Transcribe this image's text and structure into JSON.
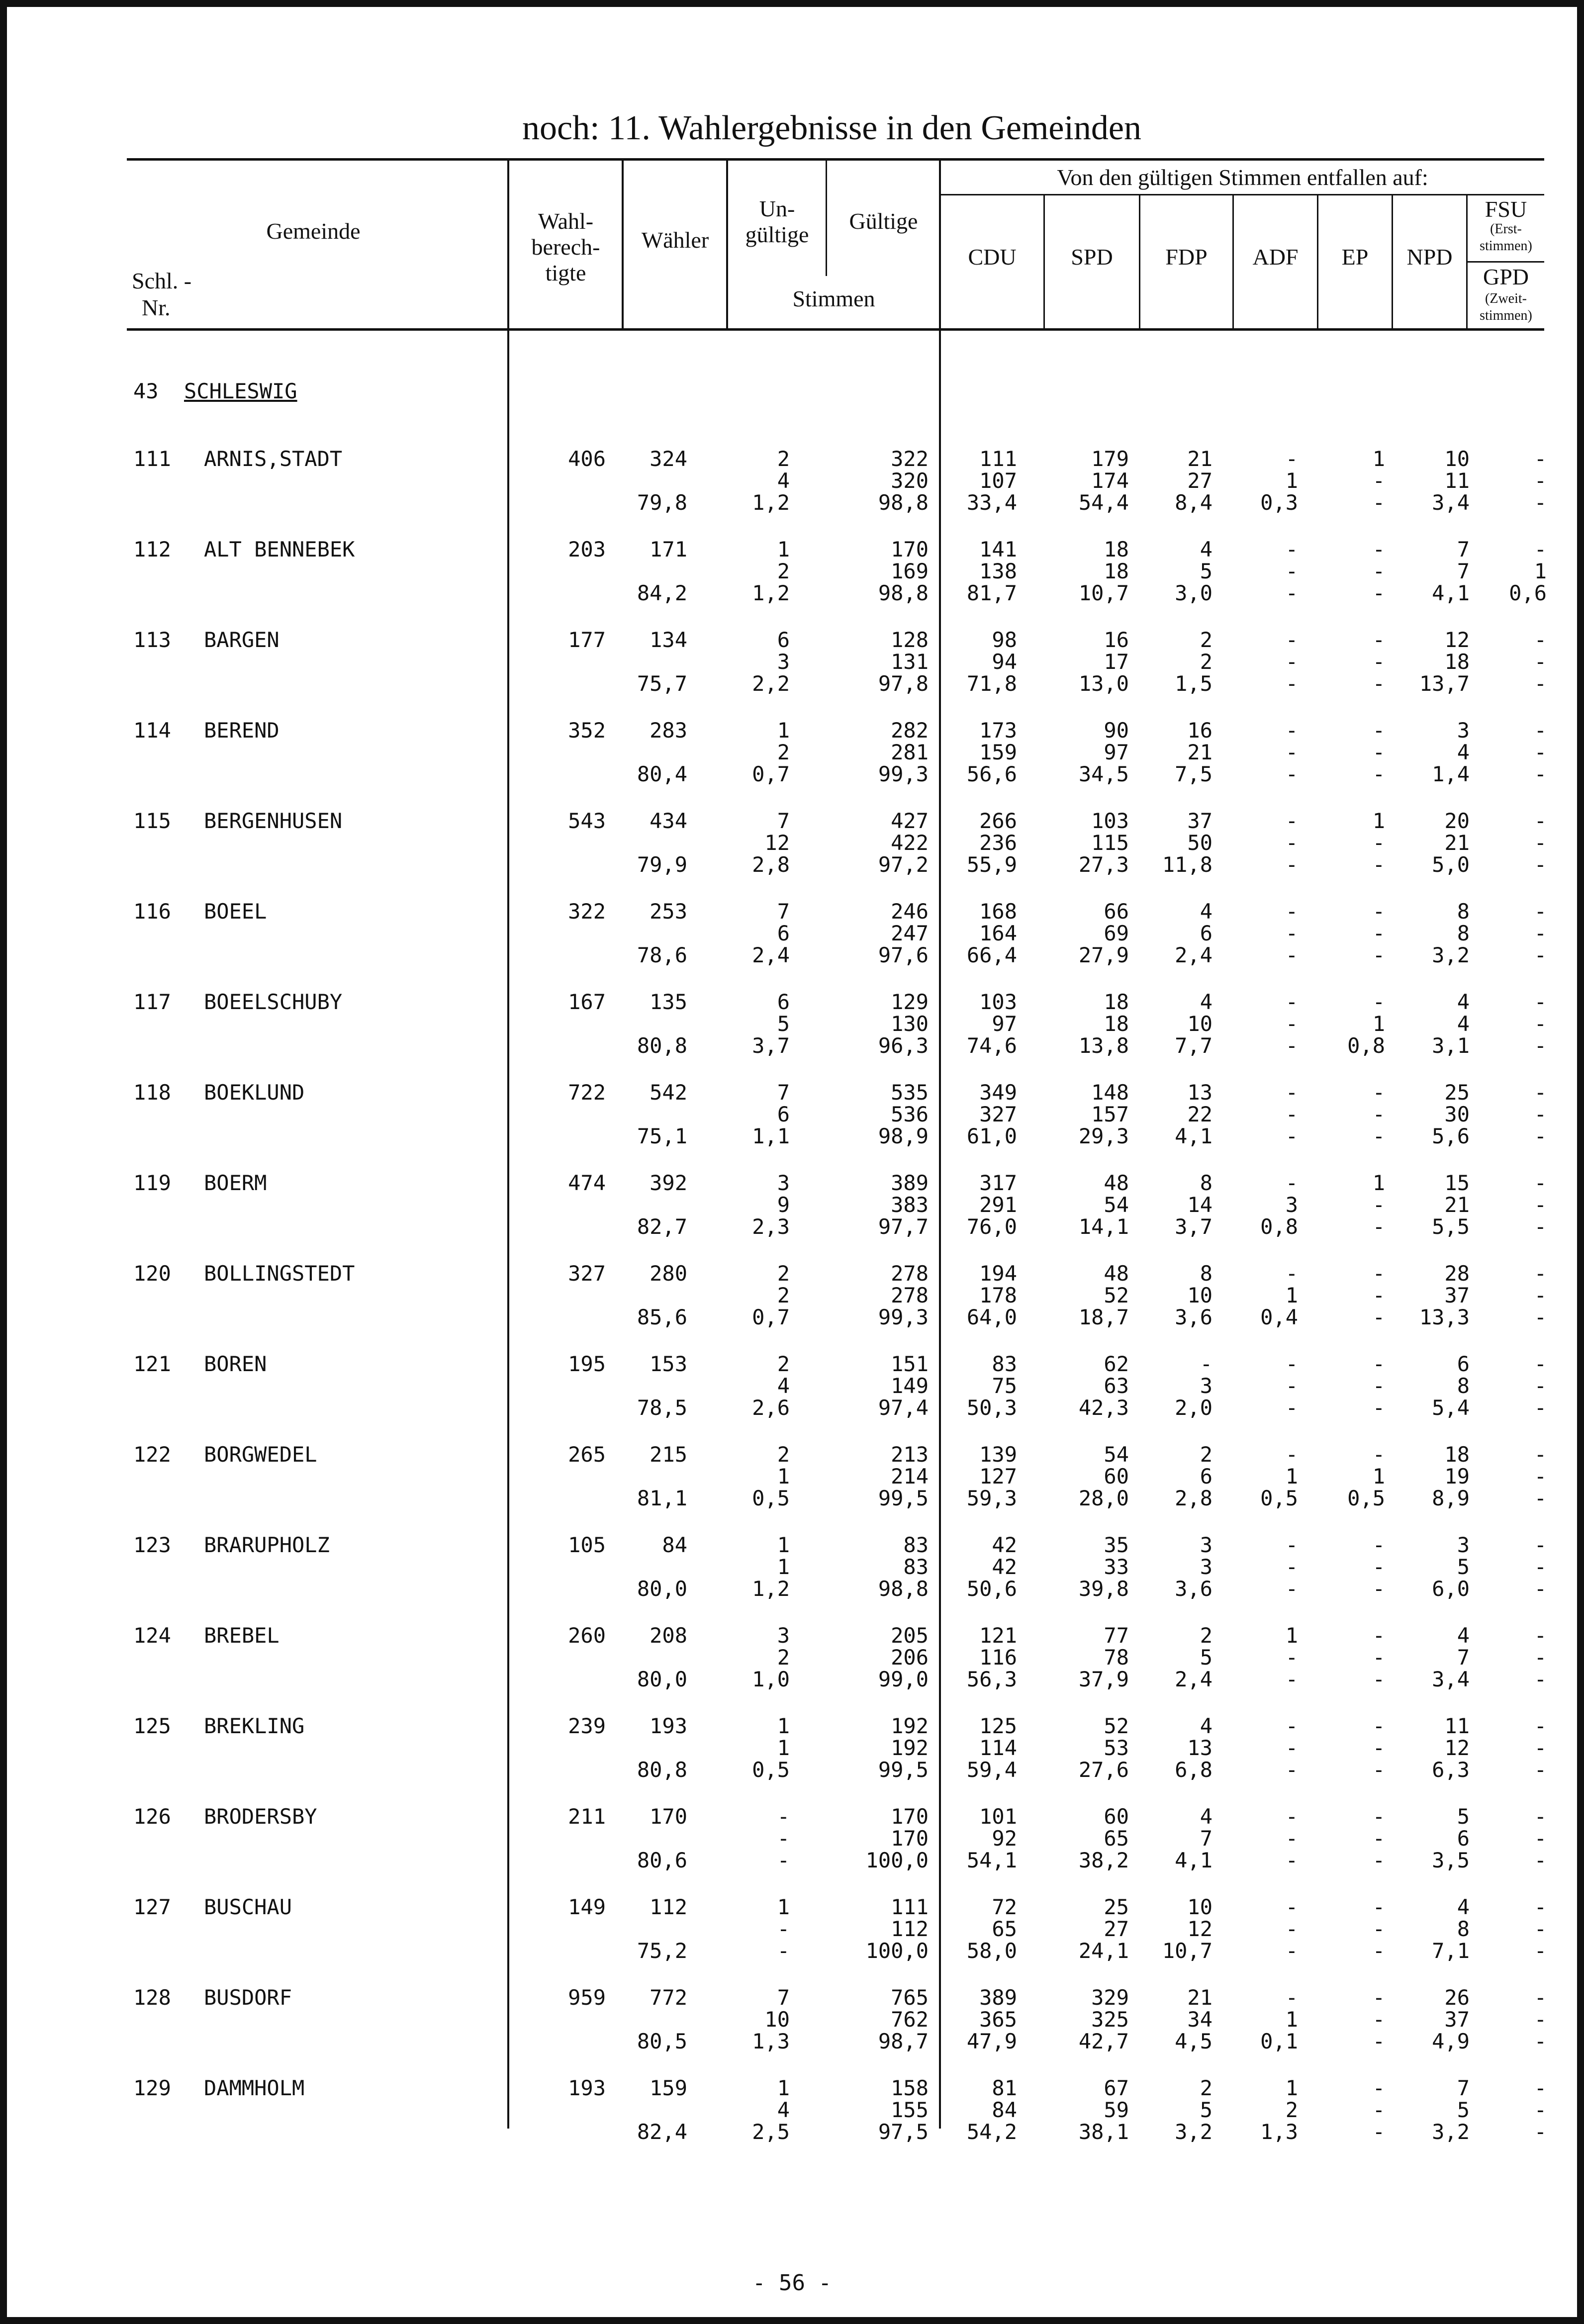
{
  "title": "noch: 11. Wahlergebnisse in den Gemeinden",
  "headers": {
    "gemeinde": "Gemeinde",
    "schl": "Schl. -",
    "nr": "Nr.",
    "wahl1": "Wahl-",
    "wahl2": "berech-",
    "wahl3": "tigte",
    "waehler": "Wähler",
    "un1": "Un-",
    "un2": "gültige",
    "gueltige": "Gültige",
    "stimmen": "Stimmen",
    "von": "Von den gültigen Stimmen entfallen auf:",
    "cdu": "CDU",
    "spd": "SPD",
    "fdp": "FDP",
    "adf": "ADF",
    "ep": "EP",
    "npd": "NPD",
    "fsu": "FSU",
    "erst1": "(Erst-",
    "erst2": "stimmen)",
    "gpd": "GPD",
    "zweit1": "(Zweit-",
    "zweit2": "stimmen)"
  },
  "district": {
    "number": "43",
    "name": "SCHLESWIG"
  },
  "rows": [
    {
      "nr": "111",
      "name": "ARNIS,STADT",
      "wahl": "406",
      "lines": [
        [
          "324",
          "2",
          "322",
          "111",
          "179",
          "21",
          "-",
          "1",
          "10",
          "-"
        ],
        [
          "",
          "4",
          "320",
          "107",
          "174",
          "27",
          "1",
          "-",
          "11",
          "-"
        ],
        [
          "79,8",
          "1,2",
          "98,8",
          "33,4",
          "54,4",
          "8,4",
          "0,3",
          "-",
          "3,4",
          "-"
        ]
      ]
    },
    {
      "nr": "112",
      "name": "ALT BENNEBEK",
      "wahl": "203",
      "lines": [
        [
          "171",
          "1",
          "170",
          "141",
          "18",
          "4",
          "-",
          "-",
          "7",
          "-"
        ],
        [
          "",
          "2",
          "169",
          "138",
          "18",
          "5",
          "-",
          "-",
          "7",
          "1"
        ],
        [
          "84,2",
          "1,2",
          "98,8",
          "81,7",
          "10,7",
          "3,0",
          "-",
          "-",
          "4,1",
          "0,6"
        ]
      ]
    },
    {
      "nr": "113",
      "name": "BARGEN",
      "wahl": "177",
      "lines": [
        [
          "134",
          "6",
          "128",
          "98",
          "16",
          "2",
          "-",
          "-",
          "12",
          "-"
        ],
        [
          "",
          "3",
          "131",
          "94",
          "17",
          "2",
          "-",
          "-",
          "18",
          "-"
        ],
        [
          "75,7",
          "2,2",
          "97,8",
          "71,8",
          "13,0",
          "1,5",
          "-",
          "-",
          "13,7",
          "-"
        ]
      ]
    },
    {
      "nr": "114",
      "name": "BEREND",
      "wahl": "352",
      "lines": [
        [
          "283",
          "1",
          "282",
          "173",
          "90",
          "16",
          "-",
          "-",
          "3",
          "-"
        ],
        [
          "",
          "2",
          "281",
          "159",
          "97",
          "21",
          "-",
          "-",
          "4",
          "-"
        ],
        [
          "80,4",
          "0,7",
          "99,3",
          "56,6",
          "34,5",
          "7,5",
          "-",
          "-",
          "1,4",
          "-"
        ]
      ]
    },
    {
      "nr": "115",
      "name": "BERGENHUSEN",
      "wahl": "543",
      "lines": [
        [
          "434",
          "7",
          "427",
          "266",
          "103",
          "37",
          "-",
          "1",
          "20",
          "-"
        ],
        [
          "",
          "12",
          "422",
          "236",
          "115",
          "50",
          "-",
          "-",
          "21",
          "-"
        ],
        [
          "79,9",
          "2,8",
          "97,2",
          "55,9",
          "27,3",
          "11,8",
          "-",
          "-",
          "5,0",
          "-"
        ]
      ]
    },
    {
      "nr": "116",
      "name": "BOEEL",
      "wahl": "322",
      "lines": [
        [
          "253",
          "7",
          "246",
          "168",
          "66",
          "4",
          "-",
          "-",
          "8",
          "-"
        ],
        [
          "",
          "6",
          "247",
          "164",
          "69",
          "6",
          "-",
          "-",
          "8",
          "-"
        ],
        [
          "78,6",
          "2,4",
          "97,6",
          "66,4",
          "27,9",
          "2,4",
          "-",
          "-",
          "3,2",
          "-"
        ]
      ]
    },
    {
      "nr": "117",
      "name": "BOEELSCHUBY",
      "wahl": "167",
      "lines": [
        [
          "135",
          "6",
          "129",
          "103",
          "18",
          "4",
          "-",
          "-",
          "4",
          "-"
        ],
        [
          "",
          "5",
          "130",
          "97",
          "18",
          "10",
          "-",
          "1",
          "4",
          "-"
        ],
        [
          "80,8",
          "3,7",
          "96,3",
          "74,6",
          "13,8",
          "7,7",
          "-",
          "0,8",
          "3,1",
          "-"
        ]
      ]
    },
    {
      "nr": "118",
      "name": "BOEKLUND",
      "wahl": "722",
      "lines": [
        [
          "542",
          "7",
          "535",
          "349",
          "148",
          "13",
          "-",
          "-",
          "25",
          "-"
        ],
        [
          "",
          "6",
          "536",
          "327",
          "157",
          "22",
          "-",
          "-",
          "30",
          "-"
        ],
        [
          "75,1",
          "1,1",
          "98,9",
          "61,0",
          "29,3",
          "4,1",
          "-",
          "-",
          "5,6",
          "-"
        ]
      ]
    },
    {
      "nr": "119",
      "name": "BOERM",
      "wahl": "474",
      "lines": [
        [
          "392",
          "3",
          "389",
          "317",
          "48",
          "8",
          "-",
          "1",
          "15",
          "-"
        ],
        [
          "",
          "9",
          "383",
          "291",
          "54",
          "14",
          "3",
          "-",
          "21",
          "-"
        ],
        [
          "82,7",
          "2,3",
          "97,7",
          "76,0",
          "14,1",
          "3,7",
          "0,8",
          "-",
          "5,5",
          "-"
        ]
      ]
    },
    {
      "nr": "120",
      "name": "BOLLINGSTEDT",
      "wahl": "327",
      "lines": [
        [
          "280",
          "2",
          "278",
          "194",
          "48",
          "8",
          "-",
          "-",
          "28",
          "-"
        ],
        [
          "",
          "2",
          "278",
          "178",
          "52",
          "10",
          "1",
          "-",
          "37",
          "-"
        ],
        [
          "85,6",
          "0,7",
          "99,3",
          "64,0",
          "18,7",
          "3,6",
          "0,4",
          "-",
          "13,3",
          "-"
        ]
      ]
    },
    {
      "nr": "121",
      "name": "BOREN",
      "wahl": "195",
      "lines": [
        [
          "153",
          "2",
          "151",
          "83",
          "62",
          "-",
          "-",
          "-",
          "6",
          "-"
        ],
        [
          "",
          "4",
          "149",
          "75",
          "63",
          "3",
          "-",
          "-",
          "8",
          "-"
        ],
        [
          "78,5",
          "2,6",
          "97,4",
          "50,3",
          "42,3",
          "2,0",
          "-",
          "-",
          "5,4",
          "-"
        ]
      ]
    },
    {
      "nr": "122",
      "name": "BORGWEDEL",
      "wahl": "265",
      "lines": [
        [
          "215",
          "2",
          "213",
          "139",
          "54",
          "2",
          "-",
          "-",
          "18",
          "-"
        ],
        [
          "",
          "1",
          "214",
          "127",
          "60",
          "6",
          "1",
          "1",
          "19",
          "-"
        ],
        [
          "81,1",
          "0,5",
          "99,5",
          "59,3",
          "28,0",
          "2,8",
          "0,5",
          "0,5",
          "8,9",
          "-"
        ]
      ]
    },
    {
      "nr": "123",
      "name": "BRARUPHOLZ",
      "wahl": "105",
      "lines": [
        [
          "84",
          "1",
          "83",
          "42",
          "35",
          "3",
          "-",
          "-",
          "3",
          "-"
        ],
        [
          "",
          "1",
          "83",
          "42",
          "33",
          "3",
          "-",
          "-",
          "5",
          "-"
        ],
        [
          "80,0",
          "1,2",
          "98,8",
          "50,6",
          "39,8",
          "3,6",
          "-",
          "-",
          "6,0",
          "-"
        ]
      ]
    },
    {
      "nr": "124",
      "name": "BREBEL",
      "wahl": "260",
      "lines": [
        [
          "208",
          "3",
          "205",
          "121",
          "77",
          "2",
          "1",
          "-",
          "4",
          "-"
        ],
        [
          "",
          "2",
          "206",
          "116",
          "78",
          "5",
          "-",
          "-",
          "7",
          "-"
        ],
        [
          "80,0",
          "1,0",
          "99,0",
          "56,3",
          "37,9",
          "2,4",
          "-",
          "-",
          "3,4",
          "-"
        ]
      ]
    },
    {
      "nr": "125",
      "name": "BREKLING",
      "wahl": "239",
      "lines": [
        [
          "193",
          "1",
          "192",
          "125",
          "52",
          "4",
          "-",
          "-",
          "11",
          "-"
        ],
        [
          "",
          "1",
          "192",
          "114",
          "53",
          "13",
          "-",
          "-",
          "12",
          "-"
        ],
        [
          "80,8",
          "0,5",
          "99,5",
          "59,4",
          "27,6",
          "6,8",
          "-",
          "-",
          "6,3",
          "-"
        ]
      ]
    },
    {
      "nr": "126",
      "name": "BRODERSBY",
      "wahl": "211",
      "lines": [
        [
          "170",
          "-",
          "170",
          "101",
          "60",
          "4",
          "-",
          "-",
          "5",
          "-"
        ],
        [
          "",
          "-",
          "170",
          "92",
          "65",
          "7",
          "-",
          "-",
          "6",
          "-"
        ],
        [
          "80,6",
          "-",
          "100,0",
          "54,1",
          "38,2",
          "4,1",
          "-",
          "-",
          "3,5",
          "-"
        ]
      ]
    },
    {
      "nr": "127",
      "name": "BUSCHAU",
      "wahl": "149",
      "lines": [
        [
          "112",
          "1",
          "111",
          "72",
          "25",
          "10",
          "-",
          "-",
          "4",
          "-"
        ],
        [
          "",
          "-",
          "112",
          "65",
          "27",
          "12",
          "-",
          "-",
          "8",
          "-"
        ],
        [
          "75,2",
          "-",
          "100,0",
          "58,0",
          "24,1",
          "10,7",
          "-",
          "-",
          "7,1",
          "-"
        ]
      ]
    },
    {
      "nr": "128",
      "name": "BUSDORF",
      "wahl": "959",
      "lines": [
        [
          "772",
          "7",
          "765",
          "389",
          "329",
          "21",
          "-",
          "-",
          "26",
          "-"
        ],
        [
          "",
          "10",
          "762",
          "365",
          "325",
          "34",
          "1",
          "-",
          "37",
          "-"
        ],
        [
          "80,5",
          "1,3",
          "98,7",
          "47,9",
          "42,7",
          "4,5",
          "0,1",
          "-",
          "4,9",
          "-"
        ]
      ]
    },
    {
      "nr": "129",
      "name": "DAMMHOLM",
      "wahl": "193",
      "lines": [
        [
          "159",
          "1",
          "158",
          "81",
          "67",
          "2",
          "1",
          "-",
          "7",
          "-"
        ],
        [
          "",
          "4",
          "155",
          "84",
          "59",
          "5",
          "2",
          "-",
          "5",
          "-"
        ],
        [
          "82,4",
          "2,5",
          "97,5",
          "54,2",
          "38,1",
          "3,2",
          "1,3",
          "-",
          "3,2",
          "-"
        ]
      ]
    }
  ],
  "footer": "- 56 -"
}
